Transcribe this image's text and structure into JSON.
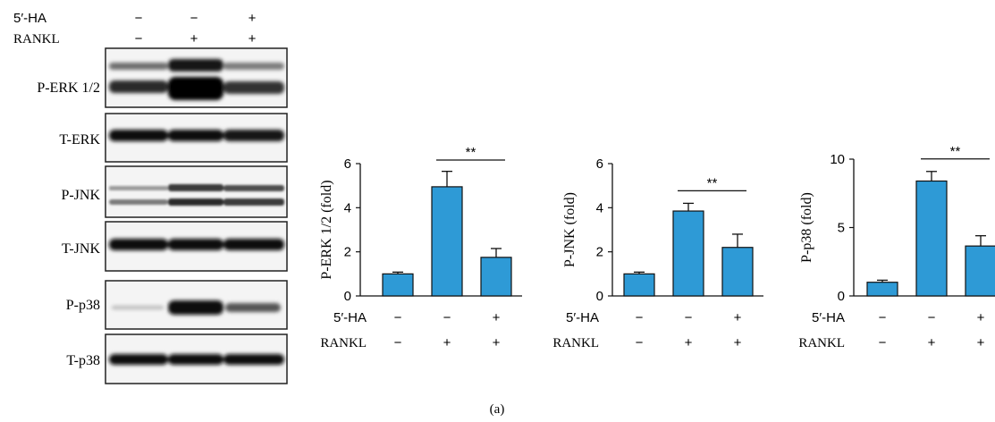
{
  "caption": "(a)",
  "blot": {
    "header_rows": [
      {
        "label": "5′-HA",
        "signs": [
          "−",
          "−",
          "+"
        ]
      },
      {
        "label": "RANKL",
        "signs": [
          "−",
          "+",
          "+"
        ]
      }
    ],
    "panels": [
      {
        "label": "P-ERK 1/2"
      },
      {
        "label": "T-ERK"
      },
      {
        "label": "P-JNK"
      },
      {
        "label": "T-JNK"
      },
      {
        "label": "P-p38"
      },
      {
        "label": "T-p38"
      }
    ]
  },
  "chart_data": [
    {
      "type": "bar",
      "ylabel": "P-ERK 1/2 (fold)",
      "ylim": [
        0,
        6
      ],
      "yticks": [
        0,
        2,
        4,
        6
      ],
      "categories": [
        "1",
        "2",
        "3"
      ],
      "values": [
        1.0,
        4.95,
        1.75
      ],
      "errors": [
        0.08,
        0.7,
        0.4
      ],
      "significance": {
        "from": 1,
        "to": 2,
        "label": "**"
      },
      "conditions": [
        {
          "label": "5′-HA",
          "signs": [
            "−",
            "−",
            "+"
          ]
        },
        {
          "label": "RANKL",
          "signs": [
            "−",
            "+",
            "+"
          ]
        }
      ],
      "bar_color": "#2E9AD6"
    },
    {
      "type": "bar",
      "ylabel": "P-JNK (fold)",
      "ylim": [
        0,
        6
      ],
      "yticks": [
        0,
        2,
        4,
        6
      ],
      "categories": [
        "1",
        "2",
        "3"
      ],
      "values": [
        1.0,
        3.85,
        2.2
      ],
      "errors": [
        0.08,
        0.35,
        0.6
      ],
      "significance": {
        "from": 1,
        "to": 2,
        "label": "**"
      },
      "conditions": [
        {
          "label": "5′-HA",
          "signs": [
            "−",
            "−",
            "+"
          ]
        },
        {
          "label": "RANKL",
          "signs": [
            "−",
            "+",
            "+"
          ]
        }
      ],
      "bar_color": "#2E9AD6"
    },
    {
      "type": "bar",
      "ylabel": "P-p38 (fold)",
      "ylim": [
        0,
        10
      ],
      "yticks": [
        0,
        5,
        10
      ],
      "categories": [
        "1",
        "2",
        "3"
      ],
      "values": [
        1.0,
        8.4,
        3.65
      ],
      "errors": [
        0.15,
        0.7,
        0.75
      ],
      "significance": {
        "from": 1,
        "to": 2,
        "label": "**"
      },
      "conditions": [
        {
          "label": "5′-HA",
          "signs": [
            "−",
            "−",
            "+"
          ]
        },
        {
          "label": "RANKL",
          "signs": [
            "−",
            "+",
            "+"
          ]
        }
      ],
      "bar_color": "#2E9AD6"
    }
  ]
}
